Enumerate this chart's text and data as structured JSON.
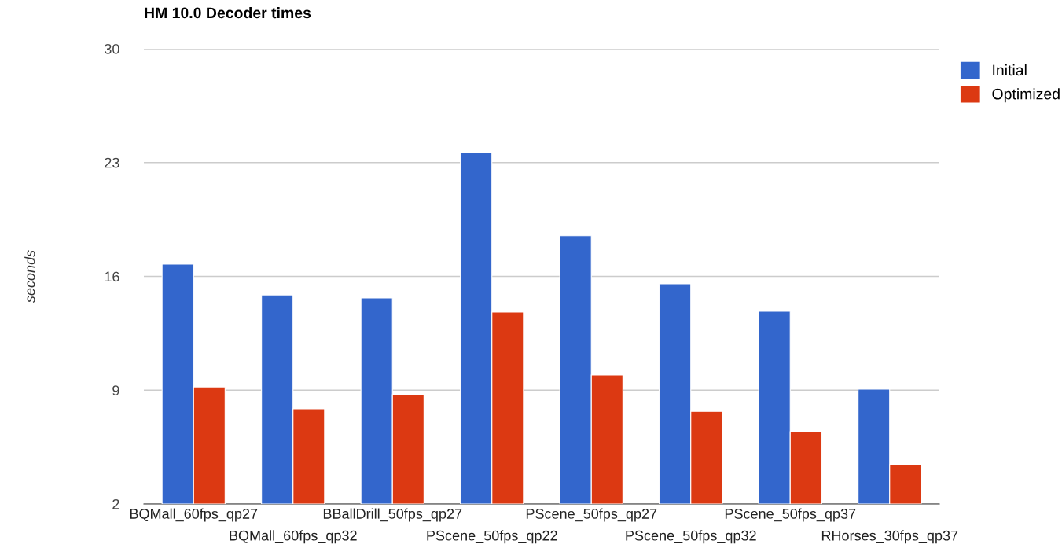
{
  "chart_data": {
    "type": "bar",
    "title": "HM 10.0 Decoder times",
    "ylabel": "seconds",
    "categories": [
      "BQMall_60fps_qp27",
      "BQMall_60fps_qp32",
      "BBallDrill_50fps_qp27",
      "PScene_50fps_qp22",
      "PScene_50fps_qp27",
      "PScene_50fps_qp32",
      "PScene_50fps_qp37",
      "RHorses_30fps_qp37"
    ],
    "series": [
      {
        "name": "Initial",
        "color": "#3366cc",
        "values": [
          16.75,
          14.86,
          14.67,
          23.6,
          18.5,
          15.54,
          13.85,
          9.06
        ]
      },
      {
        "name": "Optimized",
        "color": "#dc3912",
        "values": [
          9.2,
          7.85,
          8.72,
          13.8,
          9.93,
          7.7,
          6.45,
          4.42
        ]
      }
    ],
    "ylim": [
      2,
      30
    ],
    "yticks": [
      2,
      9,
      16,
      23,
      30
    ],
    "grid": "y",
    "legend": "top right"
  }
}
